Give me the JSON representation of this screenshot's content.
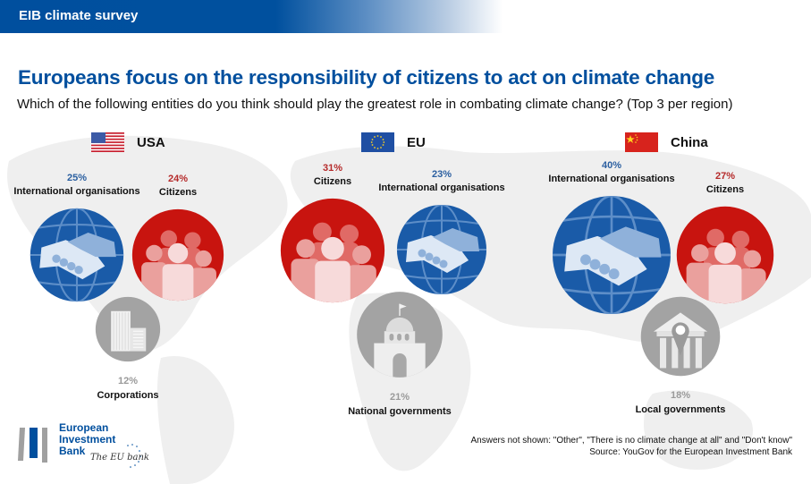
{
  "header": {
    "band_label": "EIB climate survey"
  },
  "title": "Europeans focus on the responsibility of citizens to act on climate change",
  "subtitle": "Which of the following entities do you think should play the greatest role in combating climate change? (Top 3 per region)",
  "colors": {
    "brand_blue": "#004f9e",
    "citizens_red": "#c8140f",
    "intl_blue": "#1a5ba8",
    "gray": "#a3a3a3",
    "pct_blue": "#2b5fa0",
    "pct_red": "#b52a2a",
    "pct_gray": "#9a9a9a"
  },
  "chart_data": {
    "type": "bubble",
    "title": "Europeans focus on the responsibility of citizens to act on climate change",
    "subtitle": "Which of the following entities do you think should play the greatest role in combating climate change? (Top 3 per region)",
    "unit": "%",
    "regions": [
      {
        "name": "USA",
        "flag": "us-flag-icon",
        "items": [
          {
            "label": "International organisations",
            "value": 25,
            "category": "intl",
            "icon": "handshake-globe-icon"
          },
          {
            "label": "Citizens",
            "value": 24,
            "category": "citizens",
            "icon": "people-group-icon"
          },
          {
            "label": "Corporations",
            "value": 12,
            "category": "other",
            "icon": "office-buildings-icon"
          }
        ]
      },
      {
        "name": "EU",
        "flag": "eu-flag-icon",
        "items": [
          {
            "label": "Citizens",
            "value": 31,
            "category": "citizens",
            "icon": "people-group-icon"
          },
          {
            "label": "International organisations",
            "value": 23,
            "category": "intl",
            "icon": "handshake-globe-icon"
          },
          {
            "label": "National governments",
            "value": 21,
            "category": "other",
            "icon": "capitol-building-icon"
          }
        ]
      },
      {
        "name": "China",
        "flag": "china-flag-icon",
        "items": [
          {
            "label": "International organisations",
            "value": 40,
            "category": "intl",
            "icon": "handshake-globe-icon"
          },
          {
            "label": "Citizens",
            "value": 27,
            "category": "citizens",
            "icon": "people-group-icon"
          },
          {
            "label": "Local governments",
            "value": 18,
            "category": "other",
            "icon": "town-hall-pin-icon"
          }
        ]
      }
    ]
  },
  "footer": {
    "logo_lines": [
      "European",
      "Investment",
      "Bank"
    ],
    "logo_tagline": "The EU bank",
    "note": "Answers not shown: \"Other\", \"There is no climate change at all\" and \"Don't know\"",
    "source": "Source: YouGov for the European Investment Bank"
  }
}
